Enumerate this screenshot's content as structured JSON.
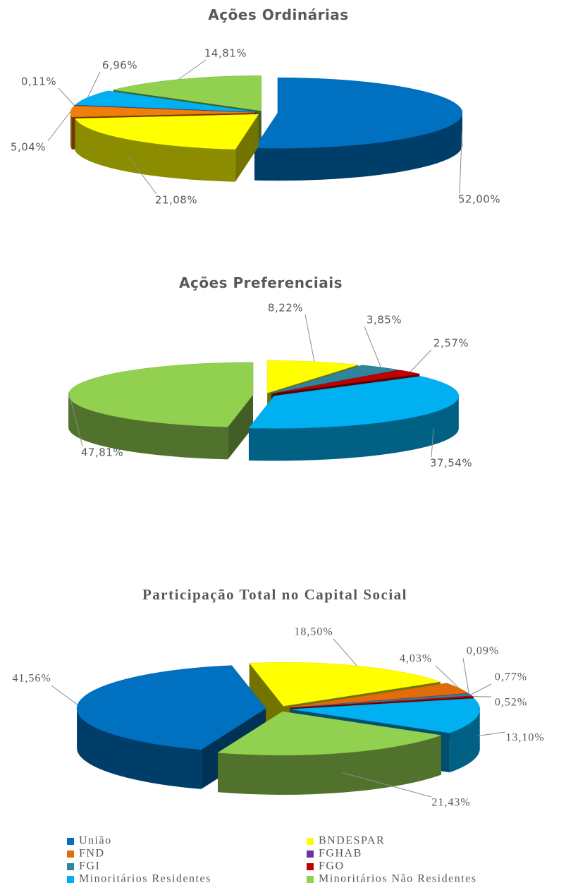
{
  "chart_data": [
    {
      "type": "pie",
      "title": "Ações Ordinárias",
      "values": [
        52.0,
        21.08,
        5.04,
        0.11,
        6.96,
        14.81
      ],
      "value_labels": [
        "52,00%",
        "21,08%",
        "5,04%",
        "0,11%",
        "6,96%",
        "14,81%"
      ],
      "colors": [
        "#0070c0",
        "#ffff00",
        "#f07f09",
        "#7030a0",
        "#00b0f0",
        "#92d050"
      ]
    },
    {
      "type": "pie",
      "title": "Ações Preferenciais",
      "values": [
        8.22,
        3.85,
        2.57,
        37.54,
        47.81
      ],
      "value_labels": [
        "8,22%",
        "3,85%",
        "2,57%",
        "37,54%",
        "47,81%"
      ],
      "colors": [
        "#ffff00",
        "#31849b",
        "#c00000",
        "#00b0f0",
        "#92d050"
      ]
    },
    {
      "type": "pie",
      "title": "Participação Total no Capital Social",
      "categories": [
        "União",
        "BNDESPAR",
        "FND",
        "FGHAB",
        "FGI",
        "FGO",
        "Minoritários Residentes",
        "Minoritários Não Residentes"
      ],
      "values": [
        41.56,
        18.5,
        4.03,
        0.09,
        0.77,
        0.52,
        13.1,
        21.43
      ],
      "value_labels": [
        "41,56%",
        "18,50%",
        "4,03%",
        "0,09%",
        "0,77%",
        "0,52%",
        "13,10%",
        "21,43%"
      ],
      "colors": [
        "#0070c0",
        "#ffff00",
        "#e36c0a",
        "#7030a0",
        "#31849b",
        "#c00000",
        "#00b0f0",
        "#92d050"
      ],
      "legend": "bottom"
    }
  ]
}
